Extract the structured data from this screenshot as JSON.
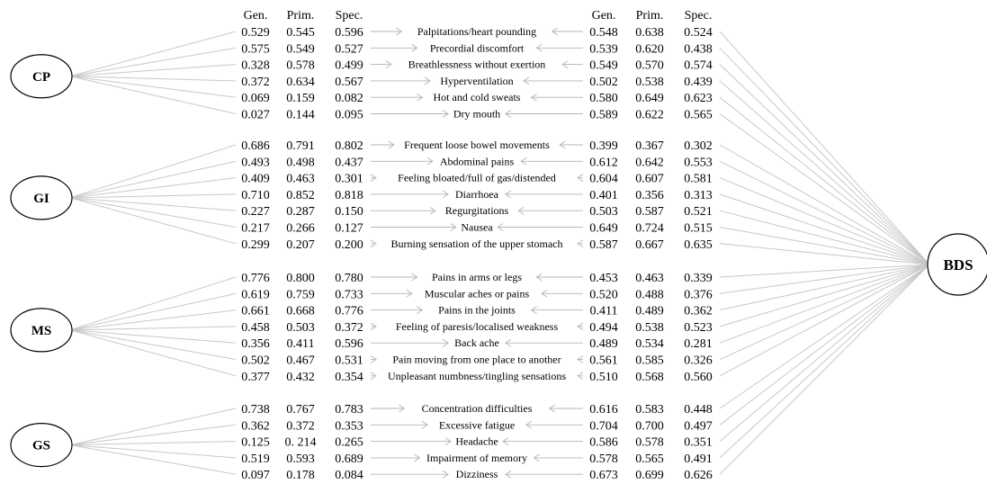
{
  "headers": {
    "left": [
      "Gen.",
      "Prim.",
      "Spec."
    ],
    "right": [
      "Gen.",
      "Prim.",
      "Spec."
    ]
  },
  "target": {
    "label": "BDS"
  },
  "groups": [
    {
      "label": "CP",
      "items": [
        {
          "symptom": "Palpitations/heart pounding",
          "left": [
            "0.529",
            "0.545",
            "0.596"
          ],
          "right": [
            "0.548",
            "0.638",
            "0.524"
          ]
        },
        {
          "symptom": "Precordial discomfort",
          "left": [
            "0.575",
            "0.549",
            "0.527"
          ],
          "right": [
            "0.539",
            "0.620",
            "0.438"
          ]
        },
        {
          "symptom": "Breathlessness without exertion",
          "left": [
            "0.328",
            "0.578",
            "0.499"
          ],
          "right": [
            "0.549",
            "0.570",
            "0.574"
          ]
        },
        {
          "symptom": "Hyperventilation",
          "left": [
            "0.372",
            "0.634",
            "0.567"
          ],
          "right": [
            "0.502",
            "0.538",
            "0.439"
          ]
        },
        {
          "symptom": "Hot and cold sweats",
          "left": [
            "0.069",
            "0.159",
            "0.082"
          ],
          "right": [
            "0.580",
            "0.649",
            "0.623"
          ]
        },
        {
          "symptom": "Dry mouth",
          "left": [
            "0.027",
            "0.144",
            "0.095"
          ],
          "right": [
            "0.589",
            "0.622",
            "0.565"
          ]
        }
      ]
    },
    {
      "label": "GI",
      "items": [
        {
          "symptom": "Frequent loose bowel movements",
          "left": [
            "0.686",
            "0.791",
            "0.802"
          ],
          "right": [
            "0.399",
            "0.367",
            "0.302"
          ]
        },
        {
          "symptom": "Abdominal pains",
          "left": [
            "0.493",
            "0.498",
            "0.437"
          ],
          "right": [
            "0.612",
            "0.642",
            "0.553"
          ]
        },
        {
          "symptom": "Feeling bloated/full of gas/distended",
          "left": [
            "0.409",
            "0.463",
            "0.301"
          ],
          "right": [
            "0.604",
            "0.607",
            "0.581"
          ]
        },
        {
          "symptom": "Diarrhoea",
          "left": [
            "0.710",
            "0.852",
            "0.818"
          ],
          "right": [
            "0.401",
            "0.356",
            "0.313"
          ]
        },
        {
          "symptom": "Regurgitations",
          "left": [
            "0.227",
            "0.287",
            "0.150"
          ],
          "right": [
            "0.503",
            "0.587",
            "0.521"
          ]
        },
        {
          "symptom": "Nausea",
          "left": [
            "0.217",
            "0.266",
            "0.127"
          ],
          "right": [
            "0.649",
            "0.724",
            "0.515"
          ]
        },
        {
          "symptom": "Burning sensation of the upper stomach",
          "left": [
            "0.299",
            "0.207",
            "0.200"
          ],
          "right": [
            "0.587",
            "0.667",
            "0.635"
          ]
        }
      ]
    },
    {
      "label": "MS",
      "items": [
        {
          "symptom": "Pains in arms or legs",
          "left": [
            "0.776",
            "0.800",
            "0.780"
          ],
          "right": [
            "0.453",
            "0.463",
            "0.339"
          ]
        },
        {
          "symptom": "Muscular aches or pains",
          "left": [
            "0.619",
            "0.759",
            "0.733"
          ],
          "right": [
            "0.520",
            "0.488",
            "0.376"
          ]
        },
        {
          "symptom": "Pains in the joints",
          "left": [
            "0.661",
            "0.668",
            "0.776"
          ],
          "right": [
            "0.411",
            "0.489",
            "0.362"
          ]
        },
        {
          "symptom": "Feeling of paresis/localised weakness",
          "left": [
            "0.458",
            "0.503",
            "0.372"
          ],
          "right": [
            "0.494",
            "0.538",
            "0.523"
          ]
        },
        {
          "symptom": "Back ache",
          "left": [
            "0.356",
            "0.411",
            "0.596"
          ],
          "right": [
            "0.489",
            "0.534",
            "0.281"
          ]
        },
        {
          "symptom": "Pain moving from one place to another",
          "left": [
            "0.502",
            "0.467",
            "0.531"
          ],
          "right": [
            "0.561",
            "0.585",
            "0.326"
          ]
        },
        {
          "symptom": "Unpleasant numbness/tingling sensations",
          "left": [
            "0.377",
            "0.432",
            "0.354"
          ],
          "right": [
            "0.510",
            "0.568",
            "0.560"
          ]
        }
      ]
    },
    {
      "label": "GS",
      "items": [
        {
          "symptom": "Concentration difficulties",
          "left": [
            "0.738",
            "0.767",
            "0.783"
          ],
          "right": [
            "0.616",
            "0.583",
            "0.448"
          ]
        },
        {
          "symptom": "Excessive fatigue",
          "left": [
            "0.362",
            "0.372",
            "0.353"
          ],
          "right": [
            "0.704",
            "0.700",
            "0.497"
          ]
        },
        {
          "symptom": "Headache",
          "left": [
            "0.125",
            "0. 214",
            "0.265"
          ],
          "right": [
            "0.586",
            "0.578",
            "0.351"
          ]
        },
        {
          "symptom": "Impairment of memory",
          "left": [
            "0.519",
            "0.593",
            "0.689"
          ],
          "right": [
            "0.578",
            "0.565",
            "0.491"
          ]
        },
        {
          "symptom": "Dizziness",
          "left": [
            "0.097",
            "0.178",
            "0.084"
          ],
          "right": [
            "0.673",
            "0.699",
            "0.626"
          ]
        }
      ]
    }
  ]
}
